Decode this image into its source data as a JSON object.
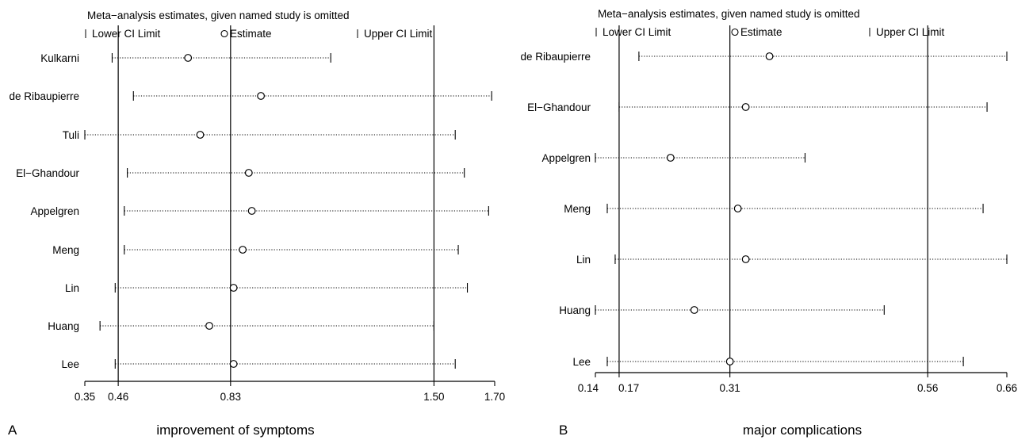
{
  "chart_data": [
    {
      "type": "scatter",
      "panel": "A",
      "subtitle": "improvement of symptoms",
      "header": "Meta−analysis estimates, given named study is omitted",
      "legend": {
        "lower": "Lower CI Limit",
        "estimate": "Estimate",
        "upper": "Upper CI Limit"
      },
      "xlim": [
        0.35,
        1.7
      ],
      "ticks": [
        {
          "value": 0.35,
          "label": "0.35"
        },
        {
          "value": 0.46,
          "label": "0.46"
        },
        {
          "value": 0.83,
          "label": "0.83"
        },
        {
          "value": 1.5,
          "label": "1.50"
        },
        {
          "value": 1.7,
          "label": "1.70"
        }
      ],
      "reference_lines": [
        0.46,
        0.83,
        1.5
      ],
      "studies": [
        {
          "name": "Kulkarni",
          "lower": 0.44,
          "estimate": 0.69,
          "upper": 1.16
        },
        {
          "name": "de Ribaupierre",
          "lower": 0.51,
          "estimate": 0.93,
          "upper": 1.69
        },
        {
          "name": "Tuli",
          "lower": 0.35,
          "estimate": 0.73,
          "upper": 1.57
        },
        {
          "name": "El−Ghandour",
          "lower": 0.49,
          "estimate": 0.89,
          "upper": 1.6
        },
        {
          "name": "Appelgren",
          "lower": 0.48,
          "estimate": 0.9,
          "upper": 1.68
        },
        {
          "name": "Meng",
          "lower": 0.48,
          "estimate": 0.87,
          "upper": 1.58
        },
        {
          "name": "Lin",
          "lower": 0.45,
          "estimate": 0.84,
          "upper": 1.61
        },
        {
          "name": "Huang",
          "lower": 0.4,
          "estimate": 0.76,
          "upper": 1.5
        },
        {
          "name": "Lee",
          "lower": 0.45,
          "estimate": 0.84,
          "upper": 1.57
        }
      ]
    },
    {
      "type": "scatter",
      "panel": "B",
      "subtitle": "major complications",
      "header": "Meta−analysis estimates, given named study is omitted",
      "legend": {
        "lower": "Lower CI Limit",
        "estimate": "Estimate",
        "upper": "Upper CI Limit"
      },
      "xlim": [
        0.14,
        0.66
      ],
      "ticks": [
        {
          "value": 0.14,
          "label": "0.14"
        },
        {
          "value": 0.17,
          "label": "0.17"
        },
        {
          "value": 0.31,
          "label": "0.31"
        },
        {
          "value": 0.56,
          "label": "0.56"
        },
        {
          "value": 0.66,
          "label": "0.66"
        }
      ],
      "reference_lines": [
        0.17,
        0.31,
        0.56
      ],
      "studies": [
        {
          "name": "de Ribaupierre",
          "lower": 0.195,
          "estimate": 0.36,
          "upper": 0.66
        },
        {
          "name": "El−Ghandour",
          "lower": 0.17,
          "estimate": 0.33,
          "upper": 0.635
        },
        {
          "name": "Appelgren",
          "lower": 0.14,
          "estimate": 0.235,
          "upper": 0.405
        },
        {
          "name": "Meng",
          "lower": 0.155,
          "estimate": 0.32,
          "upper": 0.63
        },
        {
          "name": "Lin",
          "lower": 0.165,
          "estimate": 0.33,
          "upper": 0.66
        },
        {
          "name": "Huang",
          "lower": 0.14,
          "estimate": 0.265,
          "upper": 0.505
        },
        {
          "name": "Lee",
          "lower": 0.155,
          "estimate": 0.31,
          "upper": 0.605
        }
      ]
    }
  ]
}
